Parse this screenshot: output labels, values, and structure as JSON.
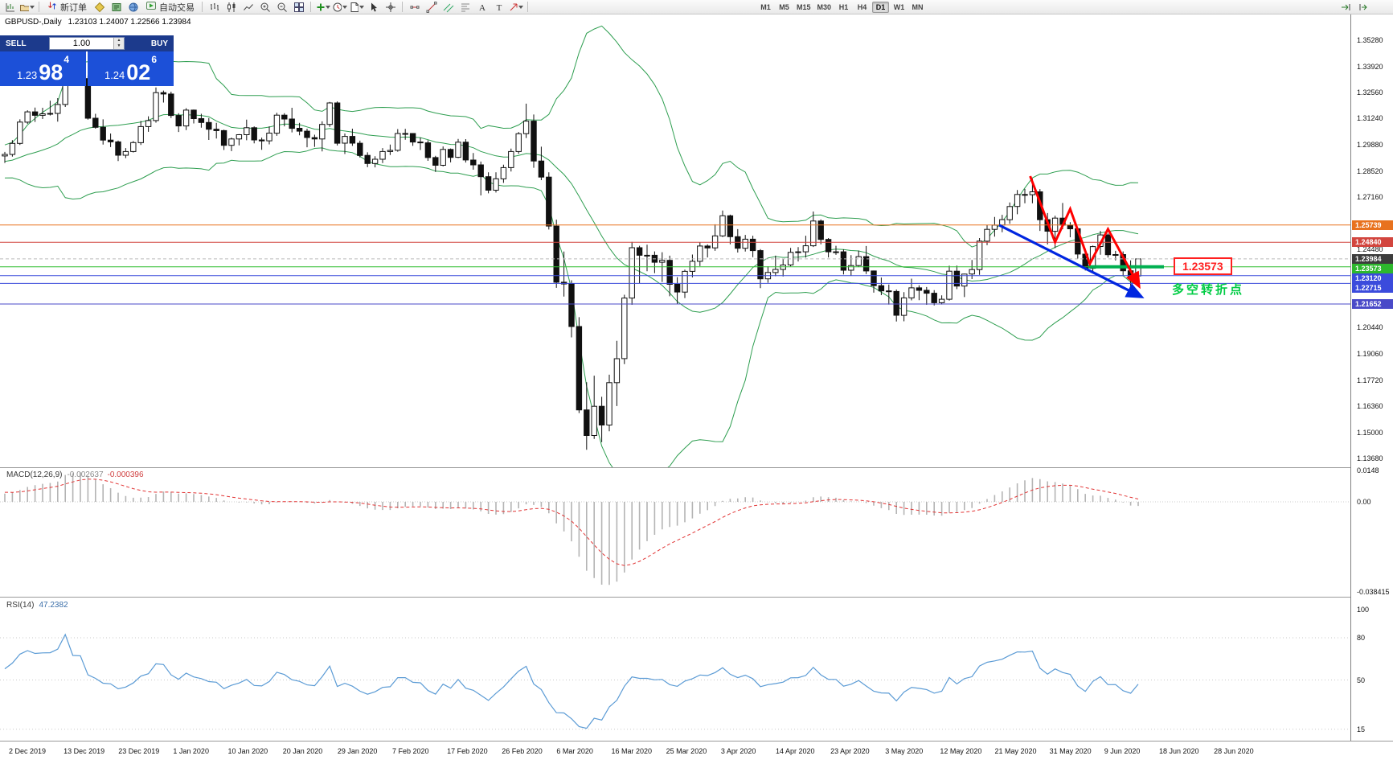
{
  "toolbar": {
    "new_order": "新订单",
    "autotrade": "自动交易",
    "timeframes": [
      "M1",
      "M5",
      "M15",
      "M30",
      "H1",
      "H4",
      "D1",
      "W1",
      "MN"
    ],
    "active_timeframe": "D1"
  },
  "icons": {
    "new-chart-icon": "chart-plus",
    "profiles-icon": "folder",
    "new-order-icon": "buy-sell-arrows",
    "metaeditor-icon": "yellow-diamond",
    "market-watch-icon": "green-book",
    "navigator-icon": "blue-globe",
    "autotrade-icon": "green-play",
    "bar-chart-icon": "bars",
    "candlestick-icon": "candles",
    "line-chart-icon": "polyline",
    "zoom-in-icon": "magnifier-plus",
    "zoom-out-icon": "magnifier-minus",
    "tile-windows-icon": "tiles",
    "indicators-icon": "green-plus",
    "periods-icon": "clock",
    "templates-icon": "document",
    "cursor-icon": "pointer",
    "crosshair-icon": "crosshair",
    "horizontal-line-icon": "hline",
    "trendline-icon": "diagonal",
    "channel-icon": "double-diagonal",
    "fibonacci-icon": "fib-lines",
    "text-icon": "A",
    "label-icon": "T",
    "arrow-tool-icon": "arrow",
    "auto-scroll-icon": "scroll-arrow",
    "chart-shift-icon": "shift-arrow"
  },
  "chart": {
    "symbol_period": "GBPUSD-,Daily",
    "ohlc_text": "1.23103 1.24007 1.22566 1.23984",
    "open": "1.23103",
    "high": "1.24007",
    "low": "1.22566",
    "close": "1.23984"
  },
  "trade_panel": {
    "sell_label": "SELL",
    "buy_label": "BUY",
    "volume": "1.00",
    "sell_price": {
      "prefix": "1.23",
      "big": "98",
      "sup": "4"
    },
    "buy_price": {
      "prefix": "1.24",
      "big": "02",
      "sup": "6"
    }
  },
  "price_axis": {
    "ticks": [
      "1.35280",
      "1.33920",
      "1.32560",
      "1.31240",
      "1.29880",
      "1.28520",
      "1.27160",
      "1.24480",
      "1.20440",
      "1.19060",
      "1.17720",
      "1.16360",
      "1.15000",
      "1.13680"
    ],
    "badges": [
      {
        "text": "1.25739",
        "value": 1.25739,
        "bg": "#E8721E"
      },
      {
        "text": "1.24840",
        "value": 1.2484,
        "bg": "#D2453E"
      },
      {
        "text": "1.23984",
        "value": 1.23984,
        "bg": "#3C3C3C"
      },
      {
        "text": "1.23573",
        "value": 1.23573,
        "bg": "#2DB82D"
      },
      {
        "text": "1.23120",
        "value": 1.2312,
        "bg": "#3B4BDC"
      },
      {
        "text": "1.22715",
        "value": 1.22715,
        "bg": "#3B4BDC"
      },
      {
        "text": "1.21652",
        "value": 1.21652,
        "bg": "#4A4AC8"
      }
    ]
  },
  "time_axis": {
    "labels": [
      "2 Dec 2019",
      "13 Dec 2019",
      "23 Dec 2019",
      "1 Jan 2020",
      "10 Jan 2020",
      "20 Jan 2020",
      "29 Jan 2020",
      "7 Feb 2020",
      "17 Feb 2020",
      "26 Feb 2020",
      "6 Mar 2020",
      "16 Mar 2020",
      "25 Mar 2020",
      "3 Apr 2020",
      "14 Apr 2020",
      "23 Apr 2020",
      "3 May 2020",
      "12 May 2020",
      "21 May 2020",
      "31 May 2020",
      "9 Jun 2020",
      "18 Jun 2020",
      "28 Jun 2020"
    ]
  },
  "indicators": {
    "macd": {
      "name": "MACD(12,26,9)",
      "value1": "-0.002637",
      "value2": "-0.000396",
      "scale": [
        {
          "text": "0.0148",
          "value": 0.0148
        },
        {
          "text": "0.00",
          "value": 0
        },
        {
          "text": "-0.038415",
          "value": -0.038415
        }
      ]
    },
    "rsi": {
      "name": "RSI(14)",
      "value": "47.2382",
      "scale": [
        {
          "text": "100",
          "value": 100
        },
        {
          "text": "80",
          "value": 80
        },
        {
          "text": "50",
          "value": 50
        },
        {
          "text": "15",
          "value": 15
        }
      ],
      "levels": [
        80,
        50,
        15
      ]
    }
  },
  "annotations": {
    "price_box_text": "1.23573",
    "turning_point_text": "多空转折点",
    "trend_arrow": {
      "from_index": 131.6,
      "from_price": 1.2573,
      "to_index": 150.2,
      "to_price": 1.2207,
      "color": "#0026E0"
    },
    "zigzag": {
      "color": "#FF0000",
      "points": [
        [
          135.7,
          1.2826
        ],
        [
          139,
          1.2485
        ],
        [
          141,
          1.2656
        ],
        [
          143.6,
          1.2373
        ],
        [
          146,
          1.2552
        ],
        [
          150,
          1.2265
        ]
      ]
    },
    "support_segment": {
      "from_index": 143.4,
      "to_index": 153.4,
      "price": 1.23573,
      "color": "#00B050"
    }
  },
  "chart_data": {
    "type": "candlestick",
    "symbol": "GBPUSD-",
    "timeframe": "Daily",
    "current_ohlc": {
      "open": 1.23103,
      "high": 1.24007,
      "low": 1.22566,
      "close": 1.23984
    },
    "y_axis": {
      "min": 1.1368,
      "max": 1.3528
    },
    "bollinger": {
      "period": 20,
      "deviations": 2,
      "color": "#2E9E50"
    },
    "macd": {
      "fast": 12,
      "slow": 26,
      "signal": 9
    },
    "rsi": {
      "period": 14
    },
    "levels": [
      {
        "value": 1.25739,
        "color": "#E8721E",
        "width": 1
      },
      {
        "value": 1.2484,
        "color": "#D2453E",
        "width": 1
      },
      {
        "value": 1.23984,
        "color": "#BBBBBB",
        "width": 1,
        "dash": "4,3"
      },
      {
        "value": 1.23573,
        "color": "#2FBE2F",
        "width": 1
      },
      {
        "value": 1.2312,
        "color": "#3B4BDC",
        "width": 1
      },
      {
        "value": 1.22715,
        "color": "#3B4BDC",
        "width": 1
      },
      {
        "value": 1.21652,
        "color": "#4A4AC8",
        "width": 1
      }
    ],
    "seed_closes": [
      1.2645,
      1.2612,
      1.2688,
      1.273,
      1.2762,
      1.2708,
      1.2745,
      1.281,
      1.2852,
      1.2825,
      1.2788,
      1.2851,
      1.2905,
      1.294,
      1.2892,
      1.2855,
      1.282,
      1.2865,
      1.2931,
      1.2902,
      1.2868,
      1.2838,
      1.2905,
      1.2952,
      1.292,
      1.289,
      1.2942,
      1.2985,
      1.2921,
      1.2875,
      1.2846,
      1.2902,
      1.295,
      1.2928
    ],
    "candles": [
      [
        1.293,
        1.2951,
        1.2894,
        1.2938
      ],
      [
        1.2938,
        1.3012,
        1.2927,
        1.2995
      ],
      [
        1.2995,
        1.3119,
        1.2987,
        1.3105
      ],
      [
        1.3105,
        1.3166,
        1.3096,
        1.3158
      ],
      [
        1.3158,
        1.318,
        1.3106,
        1.314
      ],
      [
        1.314,
        1.3179,
        1.3121,
        1.3148
      ],
      [
        1.3148,
        1.3215,
        1.3139,
        1.315
      ],
      [
        1.315,
        1.3229,
        1.3107,
        1.3196
      ],
      [
        1.3196,
        1.3515,
        1.3183,
        1.3503
      ],
      [
        1.3503,
        1.3514,
        1.3313,
        1.3333
      ],
      [
        1.3333,
        1.3422,
        1.3308,
        1.333
      ],
      [
        1.333,
        1.3345,
        1.3118,
        1.3125
      ],
      [
        1.3125,
        1.3148,
        1.3071,
        1.3078
      ],
      [
        1.3078,
        1.3119,
        1.2989,
        1.3012
      ],
      [
        1.3012,
        1.3046,
        1.2976,
        1.3003
      ],
      [
        1.3003,
        1.301,
        1.2904,
        1.2934
      ],
      [
        1.2934,
        1.2971,
        1.2919,
        1.2953
      ],
      [
        1.2953,
        1.3007,
        1.2948,
        1.2999
      ],
      [
        1.2999,
        1.3111,
        1.2987,
        1.3082
      ],
      [
        1.3082,
        1.3135,
        1.3055,
        1.3113
      ],
      [
        1.3113,
        1.3284,
        1.3102,
        1.3257
      ],
      [
        1.3257,
        1.3268,
        1.3206,
        1.325
      ],
      [
        1.325,
        1.3262,
        1.3126,
        1.3139
      ],
      [
        1.3139,
        1.3151,
        1.3054,
        1.3085
      ],
      [
        1.3085,
        1.3177,
        1.3064,
        1.3167
      ],
      [
        1.3167,
        1.317,
        1.3098,
        1.3123
      ],
      [
        1.3123,
        1.3148,
        1.3076,
        1.3103
      ],
      [
        1.3103,
        1.3126,
        1.3013,
        1.3068
      ],
      [
        1.3068,
        1.3101,
        1.302,
        1.3061
      ],
      [
        1.3061,
        1.3066,
        1.2961,
        1.2985
      ],
      [
        1.2985,
        1.3025,
        1.2955,
        1.3018
      ],
      [
        1.3018,
        1.3043,
        1.2985,
        1.304
      ],
      [
        1.304,
        1.3118,
        1.3011,
        1.3076
      ],
      [
        1.3076,
        1.3083,
        1.2995,
        1.3013
      ],
      [
        1.3013,
        1.3025,
        1.2962,
        1.3008
      ],
      [
        1.3008,
        1.3083,
        1.299,
        1.3048
      ],
      [
        1.3048,
        1.3153,
        1.3034,
        1.3141
      ],
      [
        1.3141,
        1.3151,
        1.3083,
        1.3121
      ],
      [
        1.3121,
        1.3179,
        1.3052,
        1.3073
      ],
      [
        1.3073,
        1.3101,
        1.3037,
        1.3058
      ],
      [
        1.3058,
        1.3071,
        1.2975,
        1.3025
      ],
      [
        1.3025,
        1.304,
        1.2977,
        1.3018
      ],
      [
        1.3018,
        1.3109,
        1.2954,
        1.3093
      ],
      [
        1.3093,
        1.3209,
        1.308,
        1.3204
      ],
      [
        1.3204,
        1.3212,
        1.2984,
        1.2996
      ],
      [
        1.2996,
        1.3046,
        1.294,
        1.3031
      ],
      [
        1.3031,
        1.3071,
        1.2982,
        1.2996
      ],
      [
        1.2996,
        1.3009,
        1.2922,
        1.2933
      ],
      [
        1.2933,
        1.2949,
        1.2872,
        1.2891
      ],
      [
        1.2891,
        1.2929,
        1.2871,
        1.2913
      ],
      [
        1.2913,
        1.2971,
        1.2893,
        1.2953
      ],
      [
        1.2953,
        1.2989,
        1.2935,
        1.2959
      ],
      [
        1.2959,
        1.3069,
        1.2952,
        1.3046
      ],
      [
        1.3046,
        1.307,
        1.3014,
        1.3046
      ],
      [
        1.3046,
        1.3048,
        1.2982,
        1.3002
      ],
      [
        1.3002,
        1.3025,
        1.2961,
        1.2998
      ],
      [
        1.2998,
        1.3011,
        1.2905,
        1.2922
      ],
      [
        1.2922,
        1.2931,
        1.2848,
        1.2882
      ],
      [
        1.2882,
        1.2979,
        1.2876,
        1.2964
      ],
      [
        1.2964,
        1.2969,
        1.2897,
        1.2923
      ],
      [
        1.2923,
        1.3018,
        1.2919,
        1.3001
      ],
      [
        1.3001,
        1.3017,
        1.2896,
        1.2909
      ],
      [
        1.2909,
        1.2945,
        1.2859,
        1.2884
      ],
      [
        1.2884,
        1.2901,
        1.2726,
        1.2823
      ],
      [
        1.2823,
        1.2846,
        1.2737,
        1.2753
      ],
      [
        1.2753,
        1.2846,
        1.2741,
        1.2812
      ],
      [
        1.2812,
        1.2885,
        1.2791,
        1.287
      ],
      [
        1.287,
        1.2968,
        1.285,
        1.2953
      ],
      [
        1.2953,
        1.3054,
        1.2941,
        1.3045
      ],
      [
        1.3045,
        1.32,
        1.3023,
        1.311
      ],
      [
        1.311,
        1.3144,
        1.2869,
        1.2904
      ],
      [
        1.2904,
        1.2978,
        1.2805,
        1.2821
      ],
      [
        1.2821,
        1.2846,
        1.255,
        1.2568
      ],
      [
        1.2568,
        1.2601,
        1.2249,
        1.2278
      ],
      [
        1.2278,
        1.2436,
        1.2204,
        1.2269
      ],
      [
        1.2269,
        1.2288,
        1.1993,
        1.2049
      ],
      [
        1.2049,
        1.2097,
        1.1602,
        1.1618
      ],
      [
        1.1618,
        1.1761,
        1.1412,
        1.1486
      ],
      [
        1.1486,
        1.1795,
        1.1468,
        1.1637
      ],
      [
        1.1637,
        1.1686,
        1.1452,
        1.154
      ],
      [
        1.154,
        1.18,
        1.1508,
        1.1759
      ],
      [
        1.1759,
        1.1975,
        1.1638,
        1.1883
      ],
      [
        1.1883,
        1.2213,
        1.1855,
        1.2196
      ],
      [
        1.2196,
        1.2486,
        1.2161,
        1.2456
      ],
      [
        1.2456,
        1.2466,
        1.2273,
        1.2417
      ],
      [
        1.2417,
        1.2472,
        1.2335,
        1.2417
      ],
      [
        1.2417,
        1.2437,
        1.2325,
        1.2381
      ],
      [
        1.2381,
        1.2433,
        1.2279,
        1.2391
      ],
      [
        1.2391,
        1.2415,
        1.2205,
        1.2267
      ],
      [
        1.2267,
        1.2304,
        1.2164,
        1.2227
      ],
      [
        1.2227,
        1.2343,
        1.2196,
        1.2334
      ],
      [
        1.2334,
        1.2421,
        1.2303,
        1.2386
      ],
      [
        1.2386,
        1.2485,
        1.2361,
        1.2465
      ],
      [
        1.2465,
        1.2473,
        1.2406,
        1.2455
      ],
      [
        1.2455,
        1.2577,
        1.244,
        1.2517
      ],
      [
        1.2517,
        1.2648,
        1.2511,
        1.2621
      ],
      [
        1.2621,
        1.2627,
        1.2474,
        1.2513
      ],
      [
        1.2513,
        1.2552,
        1.2431,
        1.2453
      ],
      [
        1.2453,
        1.2522,
        1.2436,
        1.25
      ],
      [
        1.25,
        1.2518,
        1.2407,
        1.2441
      ],
      [
        1.2441,
        1.2449,
        1.2247,
        1.2295
      ],
      [
        1.2295,
        1.236,
        1.2275,
        1.2328
      ],
      [
        1.2328,
        1.2415,
        1.2309,
        1.2344
      ],
      [
        1.2344,
        1.2397,
        1.2308,
        1.2367
      ],
      [
        1.2367,
        1.2455,
        1.236,
        1.2432
      ],
      [
        1.2432,
        1.2459,
        1.2385,
        1.2435
      ],
      [
        1.2435,
        1.2518,
        1.2405,
        1.2466
      ],
      [
        1.2466,
        1.2643,
        1.246,
        1.2594
      ],
      [
        1.2594,
        1.2602,
        1.2474,
        1.2499
      ],
      [
        1.2499,
        1.2506,
        1.2406,
        1.2435
      ],
      [
        1.2435,
        1.2466,
        1.2419,
        1.2435
      ],
      [
        1.2435,
        1.2448,
        1.2318,
        1.234
      ],
      [
        1.234,
        1.2418,
        1.2313,
        1.2364
      ],
      [
        1.2364,
        1.2441,
        1.2356,
        1.241
      ],
      [
        1.241,
        1.2465,
        1.232,
        1.2336
      ],
      [
        1.2336,
        1.2338,
        1.2224,
        1.226
      ],
      [
        1.226,
        1.2302,
        1.2211,
        1.2233
      ],
      [
        1.2233,
        1.2266,
        1.2162,
        1.223
      ],
      [
        1.223,
        1.224,
        1.2075,
        1.2107
      ],
      [
        1.2107,
        1.2227,
        1.2076,
        1.2197
      ],
      [
        1.2197,
        1.2296,
        1.2184,
        1.2249
      ],
      [
        1.2249,
        1.2262,
        1.2185,
        1.2236
      ],
      [
        1.2236,
        1.2253,
        1.2161,
        1.2221
      ],
      [
        1.2221,
        1.2237,
        1.2158,
        1.2172
      ],
      [
        1.2172,
        1.221,
        1.2163,
        1.219
      ],
      [
        1.219,
        1.2363,
        1.2183,
        1.2335
      ],
      [
        1.2335,
        1.2364,
        1.2242,
        1.2258
      ],
      [
        1.2258,
        1.2322,
        1.2201,
        1.232
      ],
      [
        1.232,
        1.2393,
        1.2294,
        1.2343
      ],
      [
        1.2343,
        1.2506,
        1.2316,
        1.249
      ],
      [
        1.249,
        1.2574,
        1.2469,
        1.2551
      ],
      [
        1.2551,
        1.2615,
        1.2513,
        1.2573
      ],
      [
        1.2573,
        1.2626,
        1.2536,
        1.2601
      ],
      [
        1.2601,
        1.269,
        1.258,
        1.2669
      ],
      [
        1.2669,
        1.2754,
        1.2629,
        1.2731
      ],
      [
        1.2731,
        1.276,
        1.2686,
        1.273
      ],
      [
        1.273,
        1.2813,
        1.2686,
        1.2745
      ],
      [
        1.2745,
        1.2759,
        1.2543,
        1.2601
      ],
      [
        1.2601,
        1.2635,
        1.2473,
        1.2541
      ],
      [
        1.2541,
        1.2621,
        1.2454,
        1.2609
      ],
      [
        1.2609,
        1.2687,
        1.2552,
        1.2573
      ],
      [
        1.2573,
        1.2588,
        1.251,
        1.2554
      ],
      [
        1.2554,
        1.2557,
        1.24,
        1.2423
      ],
      [
        1.2423,
        1.2451,
        1.2338,
        1.235
      ],
      [
        1.235,
        1.2467,
        1.2335,
        1.2462
      ],
      [
        1.2462,
        1.2543,
        1.242,
        1.2522
      ],
      [
        1.2522,
        1.253,
        1.2405,
        1.242
      ],
      [
        1.242,
        1.244,
        1.239,
        1.2421
      ],
      [
        1.2421,
        1.2437,
        1.2313,
        1.2337
      ],
      [
        1.2337,
        1.2391,
        1.2251,
        1.2299
      ],
      [
        1.23103,
        1.24007,
        1.22566,
        1.23984
      ]
    ]
  }
}
